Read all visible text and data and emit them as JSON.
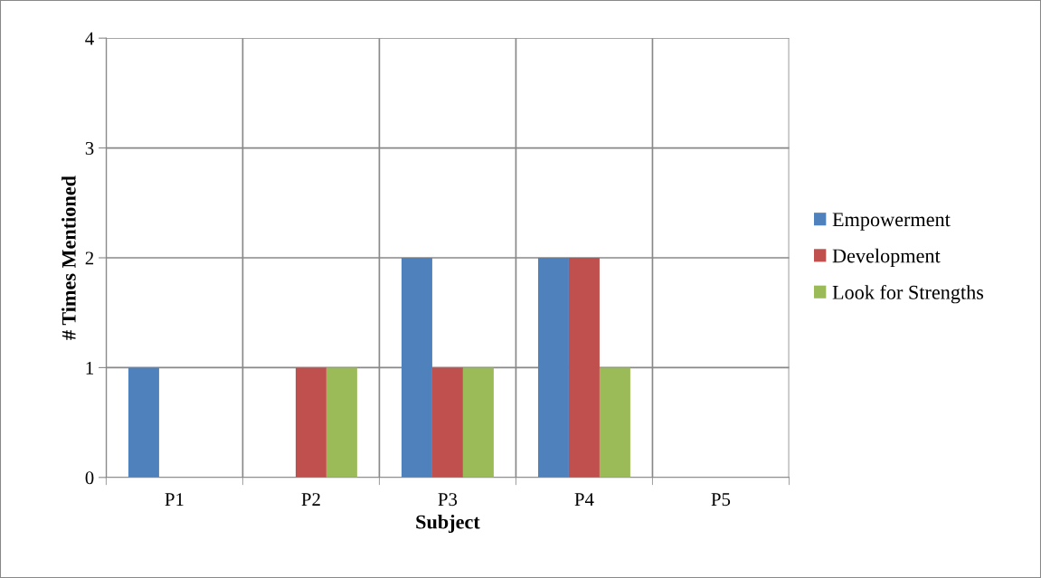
{
  "chart_data": {
    "type": "bar",
    "xlabel": "Subject",
    "ylabel": "# Times Mentioned",
    "categories": [
      "P1",
      "P2",
      "P3",
      "P4",
      "P5"
    ],
    "series": [
      {
        "name": "Empowerment",
        "color": "#4f81bd",
        "values": [
          1,
          0,
          2,
          2,
          0
        ]
      },
      {
        "name": "Development",
        "color": "#c0504d",
        "values": [
          0,
          1,
          1,
          2,
          0
        ]
      },
      {
        "name": "Look for Strengths",
        "color": "#9bbb59",
        "values": [
          0,
          1,
          1,
          1,
          0
        ]
      }
    ],
    "ylim": [
      0,
      4
    ],
    "yticks": [
      0,
      1,
      2,
      3,
      4
    ],
    "grid": true,
    "legend": "right"
  }
}
